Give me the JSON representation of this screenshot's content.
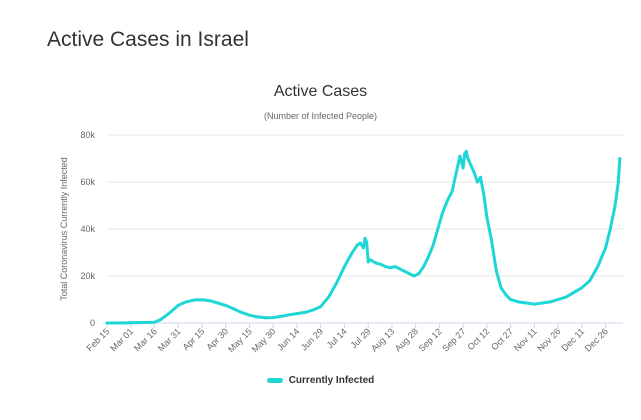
{
  "page": {
    "heading": "Active Cases in Israel"
  },
  "colors": {
    "series": "#1fd6d6",
    "grid": "#e6e6e6",
    "axis_line": "#ccd6eb"
  },
  "chart_data": {
    "type": "line",
    "title": "Active Cases",
    "subtitle": "(Number of Infected People)",
    "xlabel": "",
    "ylabel": "Total Coronavirus Currently Infected",
    "ylim": [
      0,
      80000
    ],
    "y_ticks": [
      0,
      20000,
      40000,
      60000,
      80000
    ],
    "y_tick_labels": [
      "0",
      "20k",
      "40k",
      "60k",
      "80k"
    ],
    "x_tick_labels": [
      "Feb 15",
      "Mar 01",
      "Mar 16",
      "Mar 31",
      "Apr 15",
      "Apr 30",
      "May 15",
      "May 30",
      "Jun 14",
      "Jun 29",
      "Jul 14",
      "Jul 29",
      "Aug 13",
      "Aug 28",
      "Sep 12",
      "Sep 27",
      "Oct 12",
      "Oct 27",
      "Nov 11",
      "Nov 26",
      "Dec 11",
      "Dec 26"
    ],
    "grid": true,
    "legend_position": "bottom-center",
    "series": [
      {
        "name": "Currently Infected",
        "x": [
          "Feb 15",
          "Mar 01",
          "Mar 16",
          "Mar 20",
          "Mar 25",
          "Mar 31",
          "Apr 05",
          "Apr 10",
          "Apr 15",
          "Apr 20",
          "Apr 25",
          "Apr 30",
          "May 05",
          "May 10",
          "May 15",
          "May 20",
          "May 25",
          "May 30",
          "Jun 04",
          "Jun 09",
          "Jun 14",
          "Jun 19",
          "Jun 24",
          "Jun 29",
          "Jul 04",
          "Jul 09",
          "Jul 14",
          "Jul 19",
          "Jul 22",
          "Jul 24",
          "Jul 26",
          "Jul 27",
          "Jul 28",
          "Jul 29",
          "Jul 30",
          "Aug 03",
          "Aug 06",
          "Aug 09",
          "Aug 12",
          "Aug 15",
          "Aug 18",
          "Aug 21",
          "Aug 24",
          "Aug 27",
          "Aug 30",
          "Sep 02",
          "Sep 05",
          "Sep 08",
          "Sep 11",
          "Sep 14",
          "Sep 17",
          "Sep 20",
          "Sep 22",
          "Sep 24",
          "Sep 25",
          "Sep 27",
          "Sep 28",
          "Sep 29",
          "Sep 30",
          "Oct 02",
          "Oct 04",
          "Oct 06",
          "Oct 08",
          "Oct 10",
          "Oct 12",
          "Oct 15",
          "Oct 18",
          "Oct 21",
          "Oct 24",
          "Oct 27",
          "Nov 01",
          "Nov 06",
          "Nov 11",
          "Nov 16",
          "Nov 21",
          "Nov 26",
          "Dec 01",
          "Dec 06",
          "Dec 11",
          "Dec 16",
          "Dec 21",
          "Dec 26",
          "Dec 29",
          "Jan 01",
          "Jan 03",
          "Jan 04"
        ],
        "values": [
          0,
          100,
          300,
          1500,
          4000,
          7500,
          9000,
          9800,
          9900,
          9500,
          8500,
          7500,
          6000,
          4500,
          3300,
          2600,
          2200,
          2300,
          2800,
          3500,
          4000,
          4500,
          5500,
          7000,
          11000,
          17000,
          24000,
          30000,
          33000,
          34000,
          32000,
          36000,
          34500,
          26000,
          27000,
          25500,
          25000,
          24000,
          23500,
          24000,
          23000,
          22000,
          21000,
          20000,
          21000,
          24000,
          28000,
          33000,
          40000,
          47000,
          52000,
          56000,
          62000,
          68000,
          71000,
          66000,
          72000,
          73000,
          70000,
          67000,
          64000,
          60000,
          62000,
          55000,
          45000,
          35000,
          22000,
          15000,
          12000,
          10000,
          9000,
          8500,
          8000,
          8500,
          9000,
          10000,
          11000,
          13000,
          15000,
          18000,
          24000,
          32000,
          40000,
          50000,
          60000,
          70000
        ]
      }
    ]
  }
}
